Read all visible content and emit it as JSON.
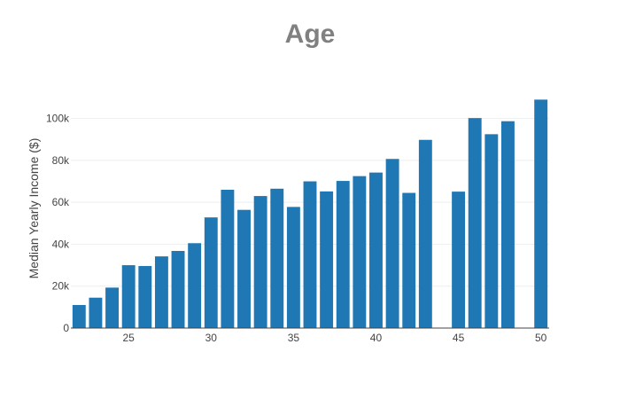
{
  "chart_data": {
    "type": "bar",
    "title": "Age",
    "xlabel": "",
    "ylabel": "Median Yearly Income ($)",
    "x": [
      22,
      23,
      24,
      25,
      26,
      27,
      28,
      29,
      30,
      31,
      32,
      33,
      34,
      35,
      36,
      37,
      38,
      39,
      40,
      41,
      42,
      43,
      45,
      46,
      47,
      48,
      50
    ],
    "values": [
      11000,
      14500,
      19300,
      30000,
      29600,
      34200,
      36800,
      40500,
      52800,
      66000,
      56400,
      63000,
      66500,
      57800,
      70000,
      65200,
      70200,
      72500,
      74200,
      80700,
      64500,
      89800,
      65100,
      100200,
      92500,
      98700,
      109000
    ],
    "xlim": [
      21.5,
      50.5
    ],
    "ylim": [
      0,
      110000
    ],
    "x_ticks": [
      25,
      30,
      35,
      40,
      45,
      50
    ],
    "y_ticks": [
      0,
      20000,
      40000,
      60000,
      80000,
      100000
    ],
    "y_tick_labels": [
      "0",
      "20k",
      "40k",
      "60k",
      "80k",
      "100k"
    ],
    "grid": "horizontal",
    "bar_color": "#1f77b4"
  }
}
